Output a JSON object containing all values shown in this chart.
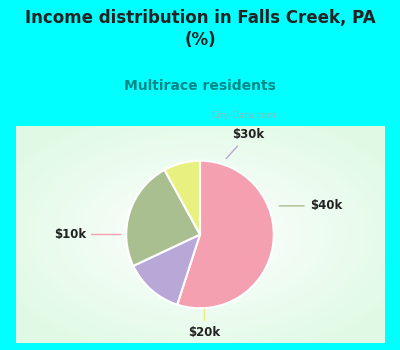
{
  "title": "Income distribution in Falls Creek, PA\n(%)",
  "subtitle": "Multirace residents",
  "title_color": "#222222",
  "subtitle_color": "#008888",
  "background_color": "#00FFFF",
  "chart_bg_color": "#e8f5ef",
  "labels": [
    "$10k",
    "$30k",
    "$40k",
    "$20k"
  ],
  "sizes": [
    55,
    13,
    24,
    8
  ],
  "colors": [
    "#F4A0B0",
    "#B8A8D8",
    "#AABF90",
    "#E8F080"
  ],
  "startangle": 90,
  "label_fontsize": 8.5,
  "title_fontsize": 12,
  "subtitle_fontsize": 10,
  "watermark": "City-Data.com"
}
